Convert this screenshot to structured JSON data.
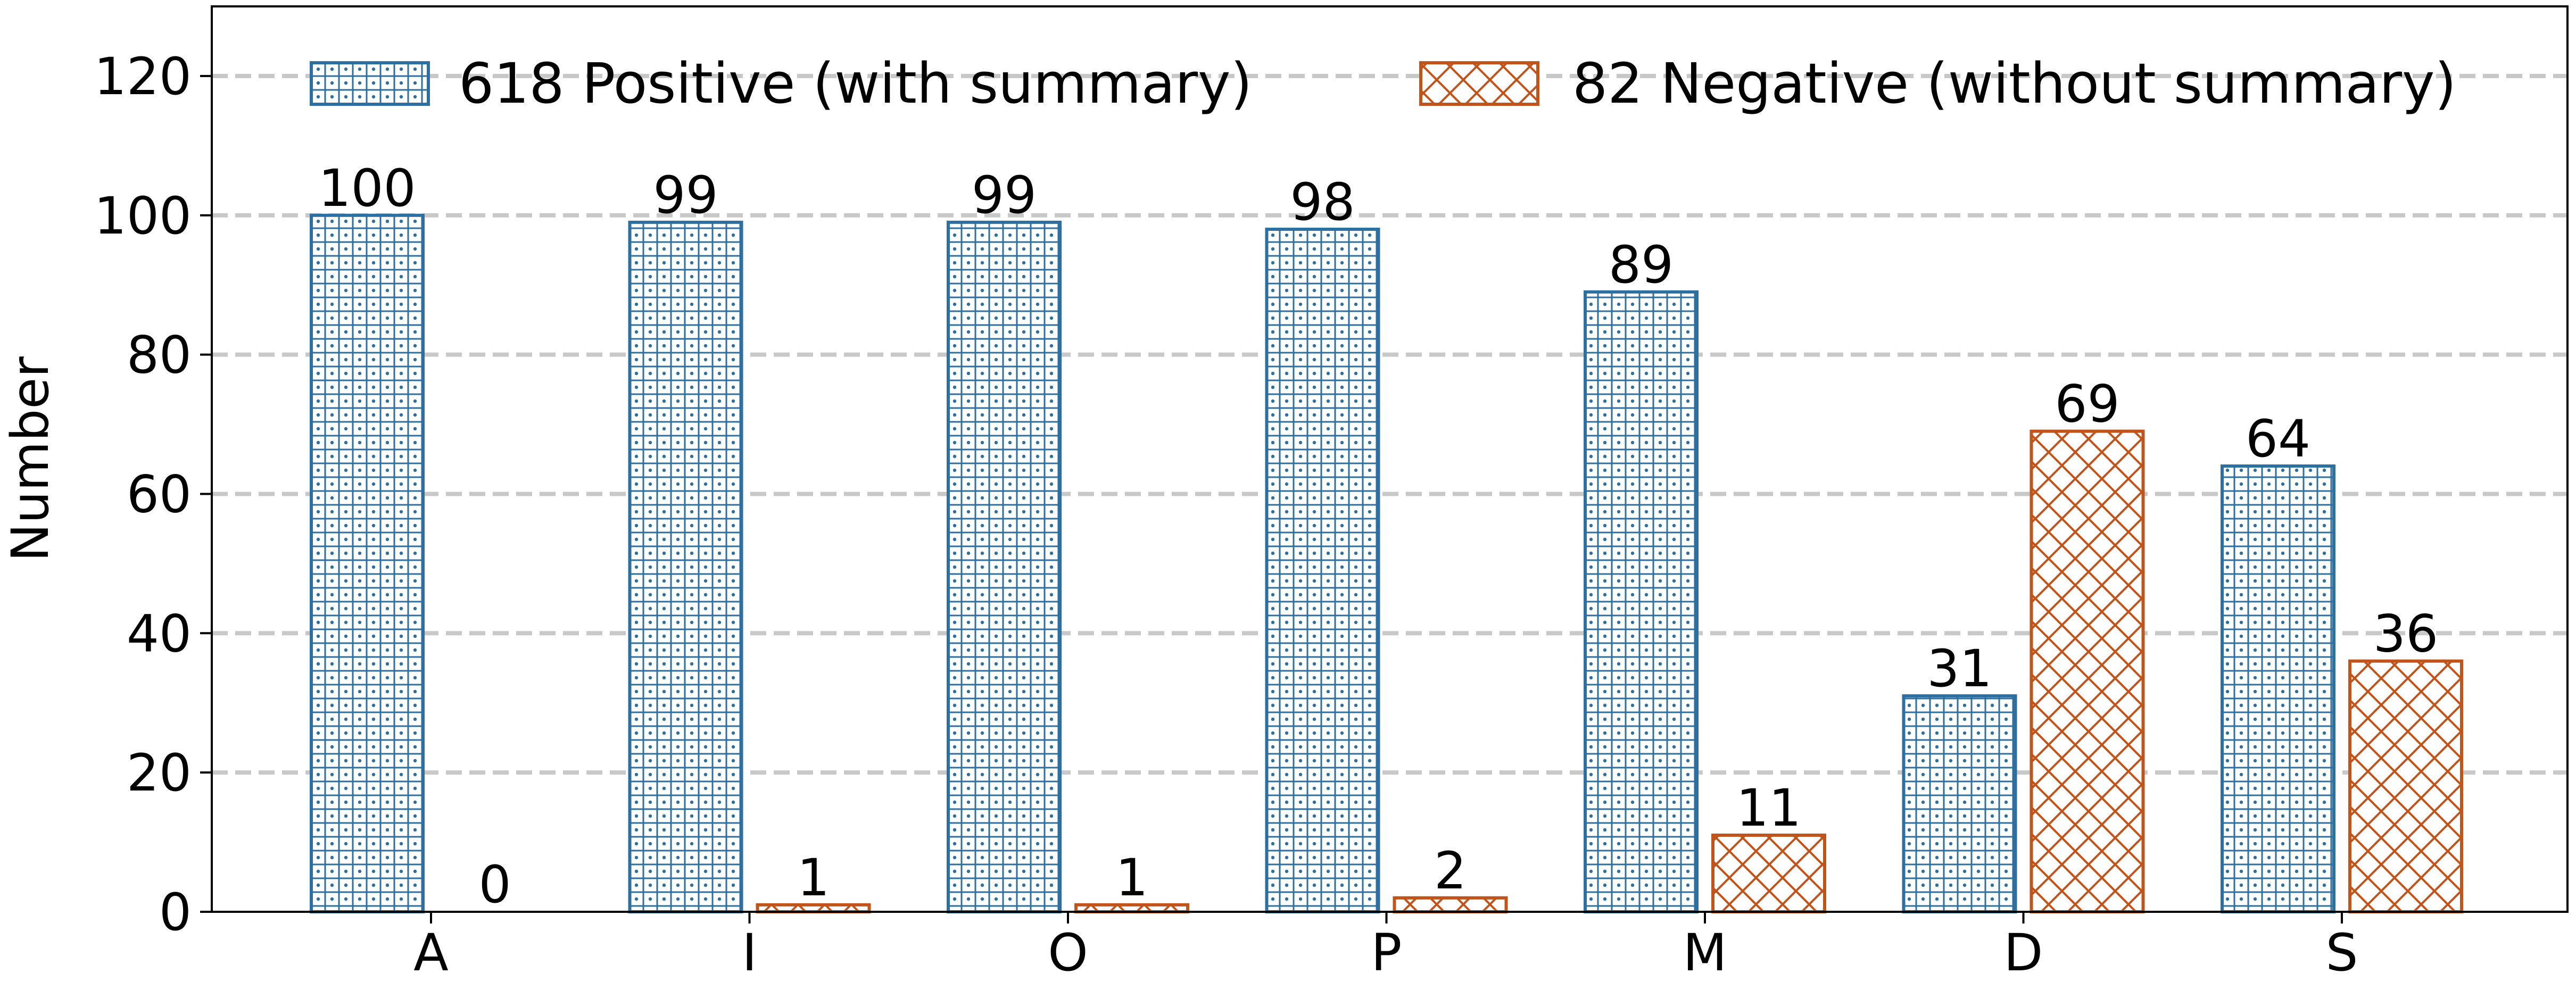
{
  "chart_data": {
    "type": "bar",
    "categories": [
      "A",
      "I",
      "O",
      "P",
      "M",
      "D",
      "S"
    ],
    "series": [
      {
        "name": "618 Positive (with summary)",
        "values": [
          100,
          99,
          99,
          98,
          89,
          31,
          64
        ],
        "color": "#2e6fa1",
        "pattern": "grid-dots"
      },
      {
        "name": "82 Negative (without summary)",
        "values": [
          0,
          1,
          1,
          2,
          11,
          69,
          36
        ],
        "color": "#c0541a",
        "pattern": "crosshatch"
      }
    ],
    "xlabel": "",
    "ylabel": "Number",
    "ylim": [
      0,
      130
    ],
    "yticks": [
      0,
      20,
      40,
      60,
      80,
      100,
      120
    ],
    "grid": "horizontal dashed",
    "legend_position": "top"
  }
}
